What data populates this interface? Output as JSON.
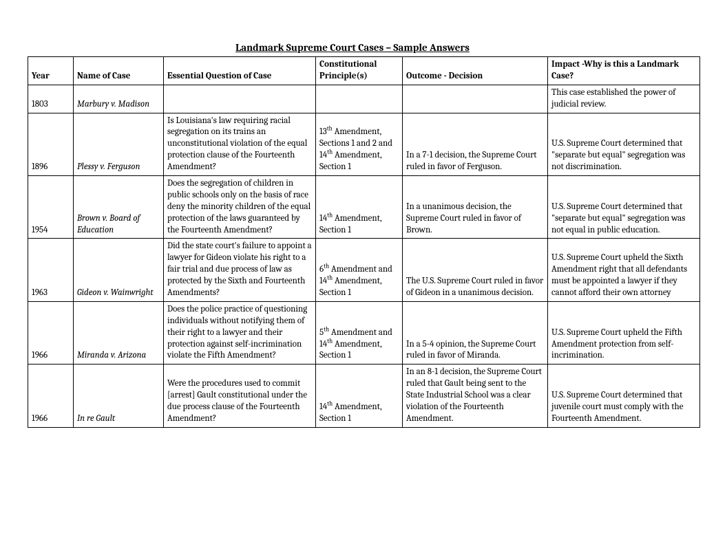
{
  "title": "Landmark Supreme Court Cases – Sample Answers",
  "columns": {
    "year": "Year",
    "case": "Name of Case",
    "question": "Essential Question of Case",
    "principle": "Constitutional Principle(s)",
    "outcome": "Outcome - Decision",
    "impact": "Impact -Why is this a Landmark Case?"
  },
  "rows": [
    {
      "year": "1803",
      "case": "Marbury v. Madison",
      "question": "",
      "principle": "",
      "outcome": "",
      "impact": "This case established the power of judicial review."
    },
    {
      "year": "1896",
      "case": "Plessy v. Ferguson",
      "question": "Is Louisiana's law requiring racial segregation on its trains an unconstitutional violation of the equal protection clause of the Fourteenth Amendment?",
      "principle": "13th Amendment, Sections 1 and 2 and 14th Amendment, Section 1",
      "outcome": "In a 7-1 decision, the Supreme Court ruled in favor of Ferguson.",
      "impact": "U.S. Supreme Court determined that \"separate but equal\" segregation was not discrimination."
    },
    {
      "year": "1954",
      "case": "Brown v. Board of Education",
      "question": "Does the segregation of children in public schools only on the basis of race deny the minority children of the equal protection of the laws guaranteed by the Fourteenth Amendment?",
      "principle": "14th Amendment, Section 1",
      "outcome": "In a unanimous decision, the Supreme Court ruled in favor of Brown.",
      "impact": "U.S. Supreme Court determined that \"separate but equal\" segregation was not equal in public education."
    },
    {
      "year": "1963",
      "case": "Gideon v. Wainwright",
      "question": "Did the state court's failure to appoint a lawyer for Gideon violate his right to a fair trial and due process of law as protected by the Sixth and Fourteenth Amendments?",
      "principle": "6th Amendment and 14th Amendment, Section 1",
      "outcome": "The U.S. Supreme Court ruled in favor of Gideon in a unanimous decision.",
      "impact": "U.S. Supreme Court upheld the Sixth Amendment right that all defendants must be appointed a lawyer if they cannot afford their own attorney"
    },
    {
      "year": "1966",
      "case": "Miranda v. Arizona",
      "question": "Does the police practice of questioning individuals without notifying them of their right to a lawyer and their protection against self-incrimination violate the Fifth Amendment?",
      "principle": "5th Amendment and 14th Amendment, Section 1",
      "outcome": "In a 5-4 opinion, the Supreme Court ruled in favor of Miranda.",
      "impact": "U.S. Supreme Court upheld the Fifth Amendment protection from self-incrimination."
    },
    {
      "year": "1966",
      "case": "In re Gault",
      "question": "Were the procedures used to commit [arrest] Gault constitutional under the due process clause of the Fourteenth Amendment?",
      "principle": "14th Amendment, Section 1",
      "outcome": "In an 8-1 decision, the Supreme Court ruled that Gault being sent to the State Industrial School was a clear violation of the Fourteenth Amendment.",
      "impact": "U.S. Supreme Court determined that juvenile court must comply with the Fourteenth Amendment."
    }
  ],
  "style": {
    "font_family": "Cambria, Georgia, serif",
    "title_fontsize": 15,
    "cell_fontsize": 13,
    "border_color": "#000000",
    "background_color": "#ffffff",
    "text_color": "#000000",
    "column_widths": {
      "year": 55,
      "case": 120,
      "question": 210,
      "principle": 115,
      "outcome": 200,
      "impact": 210
    }
  }
}
